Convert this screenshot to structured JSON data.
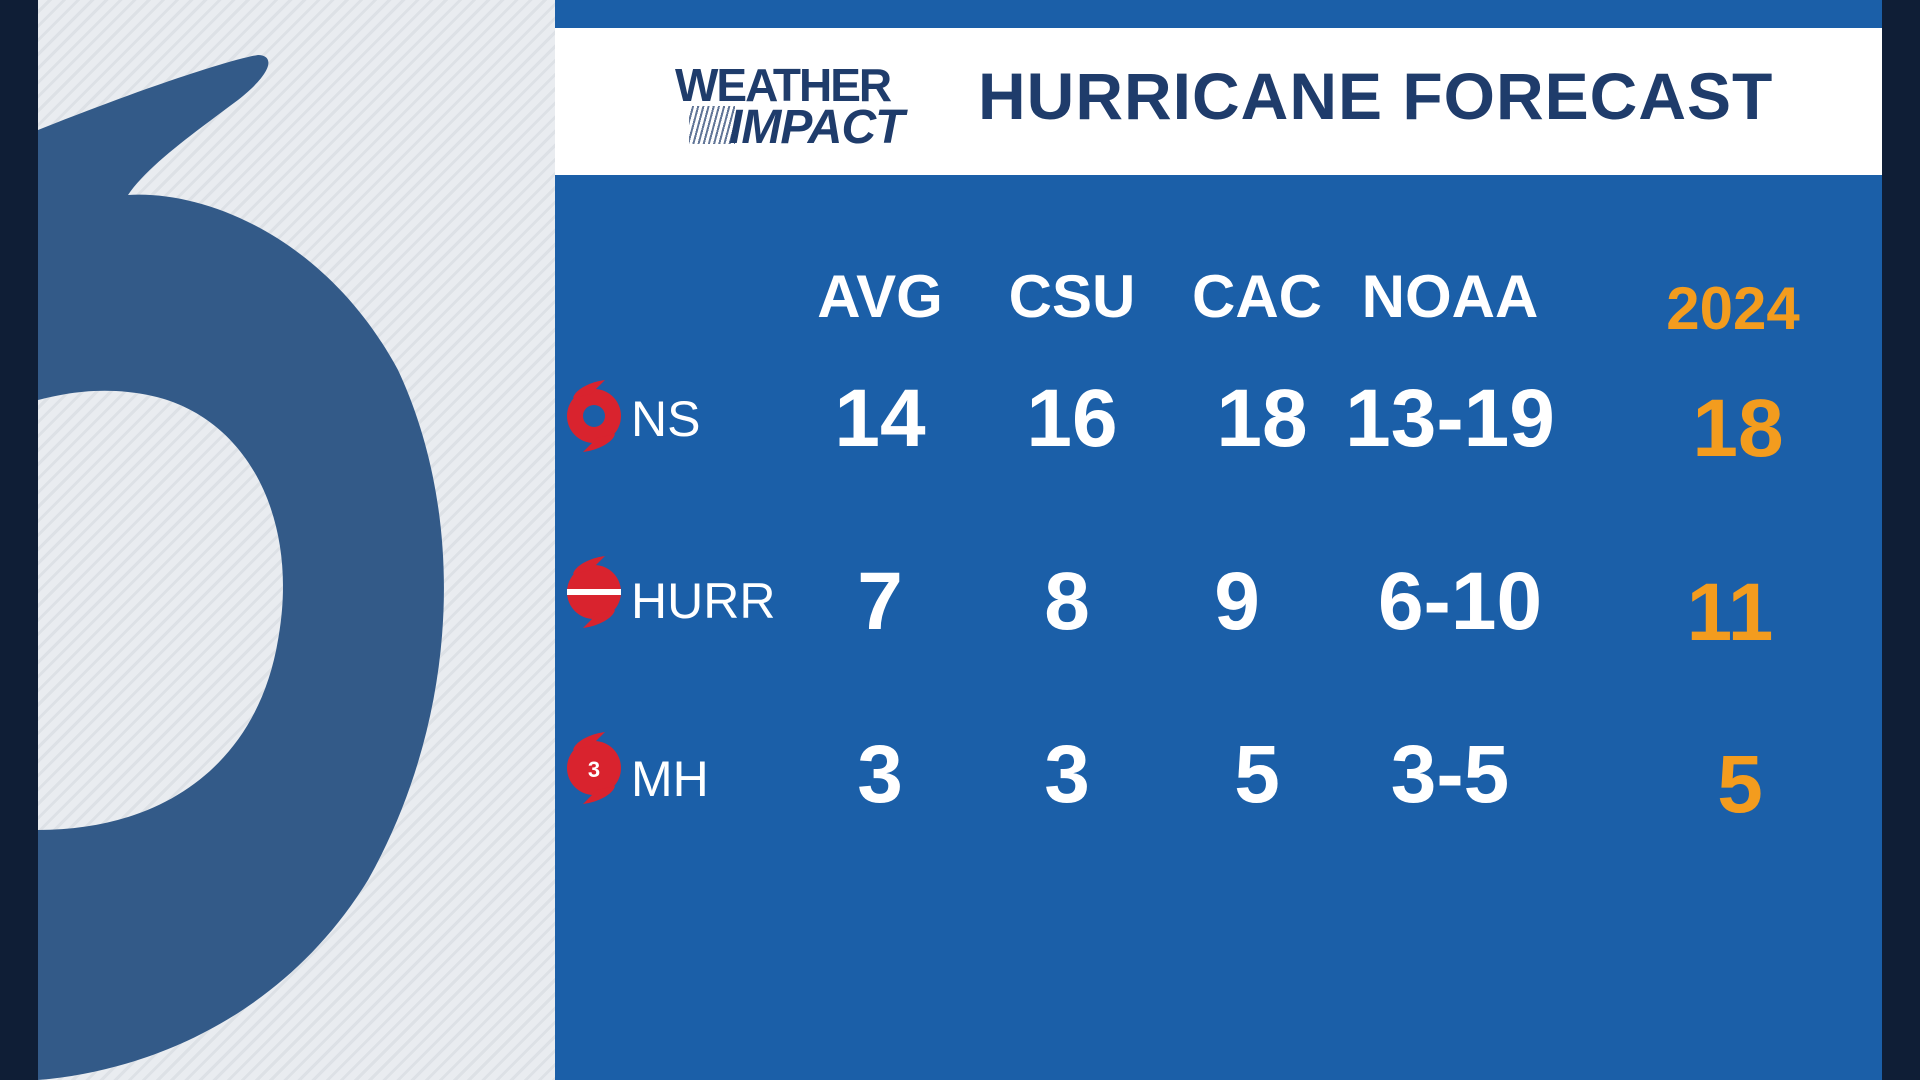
{
  "brand": {
    "line1": "WEATHER",
    "line2": "IMPACT"
  },
  "title": "HURRICANE FORECAST",
  "columns": [
    "AVG",
    "CSU",
    "CAC",
    "NOAA",
    "2024"
  ],
  "rows": [
    {
      "label": "NS",
      "icon": "storm-icon",
      "values": [
        "14",
        "16",
        "18",
        "13-19",
        "18"
      ]
    },
    {
      "label": "HURR",
      "icon": "hurricane-icon",
      "values": [
        "7",
        "8",
        "9",
        "6-10",
        "11"
      ]
    },
    {
      "label": "MH",
      "icon": "major-hurricane-icon",
      "icon_text": "3",
      "values": [
        "3",
        "3",
        "5",
        "3-5",
        "5"
      ]
    }
  ],
  "colors": {
    "panel": "#1b5fa8",
    "title": "#1f3c6b",
    "highlight": "#f39c1e",
    "icon": "#d9232e",
    "left_logo": "#335a88"
  }
}
